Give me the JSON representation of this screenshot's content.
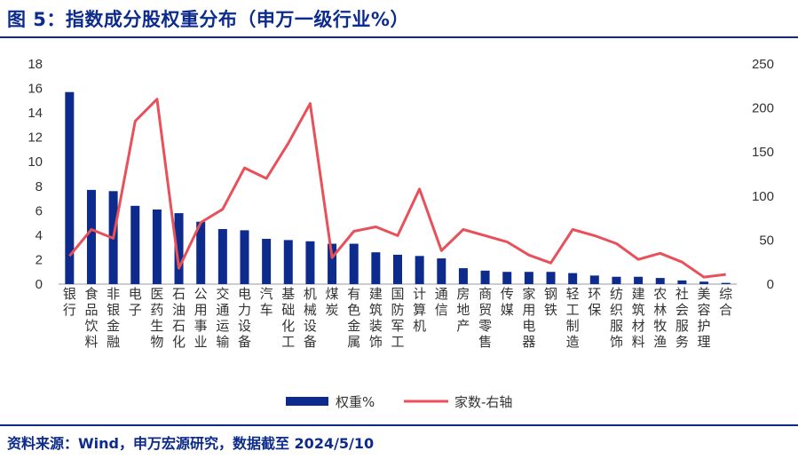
{
  "title": "图 5：指数成分股权重分布（申万一级行业%）",
  "source": "资料来源：Wind，申万宏源研究，数据截至 2024/5/10",
  "colors": {
    "bar": "#0d2b8c",
    "line": "#e8505a",
    "title": "#0d2b8c"
  },
  "chart_data": {
    "type": "bar",
    "categories": [
      "银行",
      "食品饮料",
      "非银金融",
      "电子",
      "医药生物",
      "石油石化",
      "公用事业",
      "交通运输",
      "电力设备",
      "汽车",
      "基础化工",
      "机械设备",
      "煤炭",
      "有色金属",
      "建筑装饰",
      "国防军工",
      "计算机",
      "通信",
      "房地产",
      "商贸零售",
      "传媒",
      "家用电器",
      "钢铁",
      "轻工制造",
      "环保",
      "纺织服饰",
      "建筑材料",
      "农林牧渔",
      "社会服务",
      "美容护理",
      "综合"
    ],
    "series": [
      {
        "name": "权重%",
        "type": "bar",
        "axis": "left",
        "values": [
          15.7,
          7.7,
          7.6,
          6.4,
          6.1,
          5.8,
          5.1,
          4.5,
          4.4,
          3.7,
          3.6,
          3.5,
          3.3,
          3.3,
          2.6,
          2.4,
          2.3,
          2.1,
          1.3,
          1.1,
          1.0,
          1.0,
          1.0,
          0.9,
          0.7,
          0.6,
          0.6,
          0.5,
          0.3,
          0.2,
          0.1
        ]
      },
      {
        "name": "家数-右轴",
        "type": "line",
        "axis": "right",
        "values": [
          32,
          62,
          52,
          185,
          210,
          18,
          70,
          85,
          132,
          120,
          160,
          205,
          30,
          60,
          65,
          55,
          108,
          38,
          62,
          55,
          48,
          33,
          24,
          62,
          55,
          46,
          28,
          35,
          25,
          8,
          11
        ]
      }
    ],
    "y_left": {
      "range": [
        0,
        18
      ],
      "ticks": [
        "0",
        "2",
        "4",
        "6",
        "8",
        "10",
        "12",
        "14",
        "16",
        "18"
      ]
    },
    "y_right": {
      "range": [
        0,
        250
      ],
      "ticks": [
        "0",
        "50",
        "100",
        "150",
        "200",
        "250"
      ]
    },
    "legend_position": "bottom",
    "grid": false
  }
}
